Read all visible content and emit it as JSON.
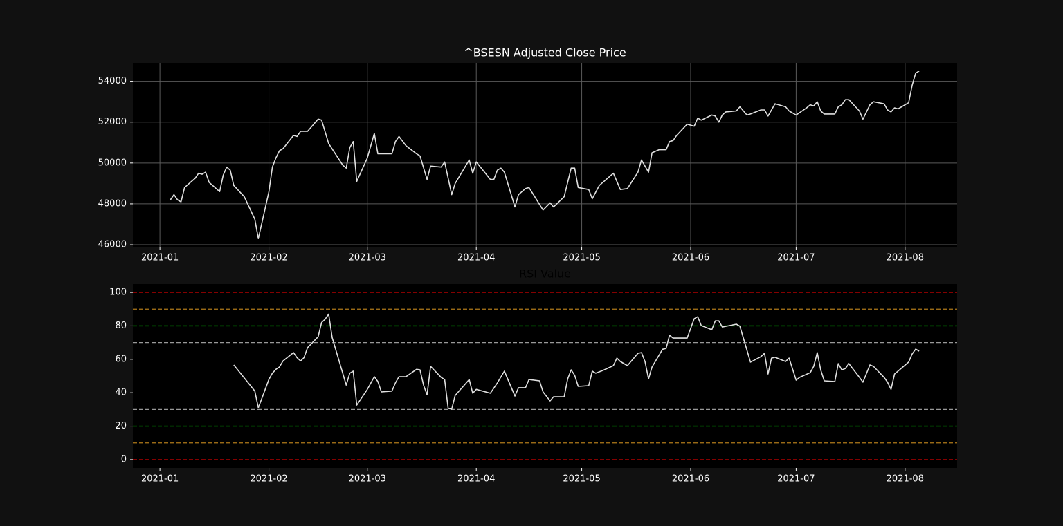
{
  "chart_data": [
    {
      "type": "line",
      "title": "^BSESN Adjusted Close Price",
      "title_color": "#ffffff",
      "color": "#e0e0e0",
      "grid": true,
      "xlim": [
        -7.7,
        226.8
      ],
      "xticks": [
        {
          "value": 0,
          "label": "2021-01"
        },
        {
          "value": 31,
          "label": "2021-02"
        },
        {
          "value": 59,
          "label": "2021-03"
        },
        {
          "value": 90,
          "label": "2021-04"
        },
        {
          "value": 120,
          "label": "2021-05"
        },
        {
          "value": 151,
          "label": "2021-06"
        },
        {
          "value": 181,
          "label": "2021-07"
        },
        {
          "value": 212,
          "label": "2021-08"
        }
      ],
      "ylim": [
        45900,
        54900
      ],
      "yticks": [
        46000,
        48000,
        50000,
        52000,
        54000
      ],
      "x": [
        3,
        4,
        5,
        6,
        7,
        9,
        10,
        11,
        12,
        13,
        14,
        17,
        18,
        19,
        20,
        21,
        24,
        27,
        28,
        31,
        32,
        33,
        34,
        35,
        38,
        39,
        40,
        42,
        45,
        46,
        48,
        52,
        53,
        54,
        55,
        56,
        59,
        61,
        62,
        64,
        66,
        67,
        68,
        70,
        73,
        74,
        76,
        77,
        80,
        81,
        83,
        84,
        88,
        89,
        90,
        94,
        95,
        96,
        97,
        98,
        101,
        102,
        104,
        105,
        109,
        111,
        112,
        115,
        117,
        118,
        119,
        122,
        123,
        125,
        129,
        131,
        133,
        136,
        137,
        139,
        140,
        142,
        144,
        145,
        146,
        147,
        150,
        152,
        153,
        154,
        157,
        158,
        159,
        160,
        161,
        164,
        165,
        167,
        168,
        171,
        172,
        173,
        175,
        178,
        179,
        181,
        184,
        185,
        186,
        187,
        188,
        189,
        192,
        193,
        194,
        195,
        196,
        199,
        200,
        202,
        203,
        206,
        207,
        208,
        209,
        210,
        213,
        214,
        215,
        216
      ],
      "values": [
        48200,
        48450,
        48200,
        48100,
        48800,
        49100,
        49250,
        49500,
        49450,
        49550,
        49050,
        48600,
        49400,
        49800,
        49650,
        48900,
        48350,
        47250,
        46300,
        48600,
        49800,
        50250,
        50600,
        50700,
        51350,
        51300,
        51550,
        51550,
        52150,
        52100,
        50950,
        49900,
        49750,
        50750,
        51050,
        49100,
        50250,
        51450,
        50450,
        50450,
        50450,
        51050,
        51300,
        50850,
        50450,
        50350,
        49200,
        49850,
        49800,
        50050,
        48450,
        49000,
        50150,
        49500,
        50050,
        49200,
        49200,
        49650,
        49750,
        49550,
        47850,
        48450,
        48750,
        48800,
        47700,
        48050,
        47850,
        48350,
        49750,
        49750,
        48800,
        48700,
        48250,
        48900,
        49500,
        48700,
        48750,
        49550,
        50150,
        49550,
        50500,
        50650,
        50650,
        51050,
        51100,
        51350,
        51900,
        51800,
        52200,
        52100,
        52350,
        52300,
        52000,
        52350,
        52500,
        52550,
        52750,
        52350,
        52400,
        52600,
        52600,
        52300,
        52900,
        52750,
        52550,
        52350,
        52700,
        52850,
        52800,
        53000,
        52550,
        52400,
        52400,
        52750,
        52850,
        53100,
        53100,
        52550,
        52150,
        52850,
        53000,
        52900,
        52600,
        52500,
        52700,
        52650,
        52950,
        53800,
        54400,
        54500
      ]
    },
    {
      "type": "line",
      "title": "RSI Value",
      "title_color": "#000000",
      "color": "#e0e0e0",
      "grid": false,
      "xlim": [
        -7.7,
        226.8
      ],
      "xticks": [
        {
          "value": 0,
          "label": "2021-01"
        },
        {
          "value": 31,
          "label": "2021-02"
        },
        {
          "value": 59,
          "label": "2021-03"
        },
        {
          "value": 90,
          "label": "2021-04"
        },
        {
          "value": 120,
          "label": "2021-05"
        },
        {
          "value": 151,
          "label": "2021-06"
        },
        {
          "value": 181,
          "label": "2021-07"
        },
        {
          "value": 212,
          "label": "2021-08"
        }
      ],
      "ylim": [
        -5,
        105
      ],
      "yticks": [
        0,
        20,
        40,
        60,
        80,
        100
      ],
      "hlines": [
        {
          "value": 100,
          "color": "#b00000"
        },
        {
          "value": 90,
          "color": "#b07a1a"
        },
        {
          "value": 80,
          "color": "#00a000"
        },
        {
          "value": 70,
          "color": "#999999"
        },
        {
          "value": 30,
          "color": "#999999"
        },
        {
          "value": 20,
          "color": "#00a000"
        },
        {
          "value": 10,
          "color": "#b07a1a"
        },
        {
          "value": 0,
          "color": "#b00000"
        }
      ],
      "x": [
        21,
        27,
        28,
        31,
        32,
        33,
        34,
        35,
        38,
        39,
        40,
        41,
        42,
        45,
        46,
        47,
        48,
        49,
        52,
        53,
        54,
        55,
        56,
        59,
        61,
        62,
        63,
        66,
        67,
        68,
        70,
        73,
        74,
        75,
        76,
        77,
        80,
        81,
        82,
        83,
        84,
        88,
        89,
        90,
        94,
        96,
        98,
        101,
        102,
        104,
        105,
        108,
        109,
        111,
        112,
        115,
        116,
        117,
        118,
        119,
        122,
        123,
        124,
        126,
        129,
        130,
        131,
        133,
        136,
        137,
        138,
        139,
        140,
        143,
        144,
        145,
        146,
        150,
        152,
        153,
        154,
        157,
        158,
        159,
        160,
        164,
        165,
        168,
        171,
        172,
        173,
        174,
        175,
        178,
        179,
        181,
        182,
        185,
        186,
        187,
        188,
        189,
        192,
        193,
        194,
        195,
        196,
        199,
        200,
        202,
        203,
        206,
        207,
        208,
        209,
        213,
        214,
        215,
        216
      ],
      "values": [
        56.6,
        41,
        31,
        48,
        51.7,
        54,
        55.4,
        59,
        64,
        61,
        59,
        61,
        67,
        73.5,
        82,
        84,
        87,
        73,
        51.7,
        44.6,
        51.7,
        52.9,
        32.6,
        42,
        49.6,
        46.7,
        40.5,
        41,
        45.9,
        49.6,
        49.6,
        54,
        53.7,
        44.6,
        38.8,
        55.8,
        49.2,
        47.9,
        30.6,
        30.2,
        38.4,
        47.9,
        39.7,
        42,
        39.7,
        45.9,
        52.9,
        38,
        43,
        43,
        47.9,
        47.1,
        40.5,
        35.1,
        37.6,
        37.6,
        48.3,
        53.7,
        50.4,
        43.8,
        44.2,
        52.9,
        51.7,
        53.3,
        56.2,
        60.7,
        58.7,
        56.2,
        63.6,
        64,
        58.7,
        48.3,
        55.4,
        66,
        66.5,
        74.4,
        72.7,
        72.7,
        84.3,
        85.5,
        80.2,
        77.7,
        83,
        83,
        79.3,
        81,
        79.8,
        58.3,
        61.6,
        63.6,
        51.2,
        60.7,
        61.2,
        58.7,
        60.7,
        47.5,
        49.2,
        52,
        55.8,
        64,
        53.7,
        47.1,
        46.7,
        57.4,
        53.7,
        54.5,
        57.4,
        49.2,
        46.3,
        56.6,
        55.8,
        49.2,
        46.3,
        42,
        51.2,
        58.3,
        63.2,
        66.1,
        64.9
      ]
    }
  ]
}
